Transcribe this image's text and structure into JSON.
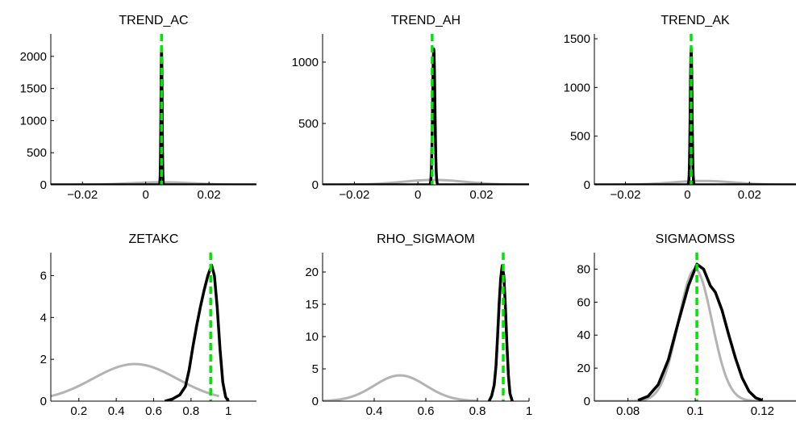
{
  "colors": {
    "prior": "#b3b3b3",
    "posterior": "#000000",
    "mode": "#00e600"
  },
  "chart_data": [
    {
      "type": "line",
      "title": "TREND_AC",
      "xlim": [
        -0.03,
        0.035
      ],
      "ylim": [
        0,
        2350
      ],
      "xticks": [
        -0.02,
        0,
        0.02
      ],
      "xtick_labels": [
        "−0.02",
        "0",
        "0.02"
      ],
      "yticks": [
        0,
        500,
        1000,
        1500,
        2000
      ],
      "ytick_labels": [
        "0",
        "500",
        "1000",
        "1500",
        "2000"
      ],
      "prior": {
        "type": "normal",
        "mean": 0.005,
        "sd": 0.01
      },
      "posterior": {
        "type": "normal",
        "mean": 0.005,
        "sd": 0.000185
      },
      "mode": 0.005
    },
    {
      "type": "line",
      "title": "TREND_AH",
      "xlim": [
        -0.03,
        0.035
      ],
      "ylim": [
        0,
        1230
      ],
      "xticks": [
        -0.02,
        0,
        0.02
      ],
      "xtick_labels": [
        "−0.02",
        "0",
        "0.02"
      ],
      "yticks": [
        0,
        500,
        1000
      ],
      "ytick_labels": [
        "0",
        "500",
        "1000"
      ],
      "prior": {
        "type": "normal",
        "mean": 0.005,
        "sd": 0.01
      },
      "posterior": {
        "type": "normal",
        "mean": 0.005,
        "sd": 0.00036
      },
      "mode": 0.0045
    },
    {
      "type": "line",
      "title": "TREND_AK",
      "xlim": [
        -0.03,
        0.035
      ],
      "ylim": [
        0,
        1550
      ],
      "xticks": [
        -0.02,
        0,
        0.02
      ],
      "xtick_labels": [
        "−0.02",
        "0",
        "0.02"
      ],
      "yticks": [
        0,
        500,
        1000,
        1500
      ],
      "ytick_labels": [
        "0",
        "500",
        "1000",
        "1500"
      ],
      "prior": {
        "type": "normal",
        "mean": 0.005,
        "sd": 0.01
      },
      "posterior": {
        "type": "normal",
        "mean": 0.0012,
        "sd": 0.000285
      },
      "mode": 0.0012
    },
    {
      "type": "line",
      "title": "ZETAKC",
      "xlim": [
        0.05,
        1.15
      ],
      "ylim": [
        0,
        7.1
      ],
      "xticks": [
        0.2,
        0.4,
        0.6,
        0.8,
        1
      ],
      "xtick_labels": [
        "0.2",
        "0.4",
        "0.6",
        "0.8",
        "1"
      ],
      "yticks": [
        0,
        2,
        4,
        6
      ],
      "ytick_labels": [
        "0",
        "2",
        "4",
        "6"
      ],
      "prior": {
        "type": "normal",
        "mean": 0.5,
        "sd": 0.225,
        "x_range": [
          0.05,
          0.95
        ]
      },
      "posterior": {
        "type": "points",
        "x": [
          0.66,
          0.7,
          0.74,
          0.77,
          0.79,
          0.81,
          0.83,
          0.85,
          0.87,
          0.89,
          0.91,
          0.925,
          0.94,
          0.955,
          0.97,
          0.985,
          1.0
        ],
        "y": [
          0,
          0.1,
          0.3,
          0.7,
          1.5,
          2.6,
          3.6,
          4.5,
          5.3,
          6.0,
          6.5,
          6.0,
          4.5,
          2.5,
          0.9,
          0.2,
          0
        ]
      },
      "mode": 0.905
    },
    {
      "type": "line",
      "title": "RHO_SIGMAOM",
      "xlim": [
        0.2,
        1.0
      ],
      "ylim": [
        0,
        23
      ],
      "xticks": [
        0.4,
        0.6,
        0.8,
        1
      ],
      "xtick_labels": [
        "0.4",
        "0.6",
        "0.8",
        "1"
      ],
      "yticks": [
        0,
        5,
        10,
        15,
        20
      ],
      "ytick_labels": [
        "0",
        "5",
        "10",
        "15",
        "20"
      ],
      "prior": {
        "type": "normal",
        "mean": 0.5,
        "sd": 0.1,
        "x_range": [
          0.2,
          0.8
        ]
      },
      "posterior": {
        "type": "points",
        "x": [
          0.845,
          0.855,
          0.865,
          0.872,
          0.878,
          0.884,
          0.89,
          0.896,
          0.902,
          0.908,
          0.914,
          0.92,
          0.926,
          0.935
        ],
        "y": [
          0,
          0.8,
          2.5,
          5.5,
          10,
          15,
          19,
          21,
          19.5,
          15,
          9,
          4,
          1.2,
          0
        ]
      },
      "mode": 0.9
    },
    {
      "type": "line",
      "title": "SIGMAOMSS",
      "xlim": [
        0.07,
        0.13
      ],
      "ylim": [
        0,
        90
      ],
      "xticks": [
        0.08,
        0.1,
        0.12
      ],
      "xtick_labels": [
        "0.08",
        "0.1",
        "0.12"
      ],
      "yticks": [
        0,
        20,
        40,
        60,
        80
      ],
      "ytick_labels": [
        "0",
        "20",
        "40",
        "60",
        "80"
      ],
      "prior": {
        "type": "normal",
        "mean": 0.1,
        "sd": 0.005
      },
      "posterior": {
        "type": "points",
        "x": [
          0.083,
          0.086,
          0.089,
          0.092,
          0.095,
          0.098,
          0.1005,
          0.1025,
          0.1045,
          0.106,
          0.108,
          0.11,
          0.112,
          0.114,
          0.116,
          0.118,
          0.12
        ],
        "y": [
          0.5,
          3,
          10,
          25,
          48,
          70,
          83,
          80,
          70,
          66,
          55,
          40,
          26,
          14,
          6,
          2,
          0.5
        ]
      },
      "mode": 0.1005
    }
  ]
}
